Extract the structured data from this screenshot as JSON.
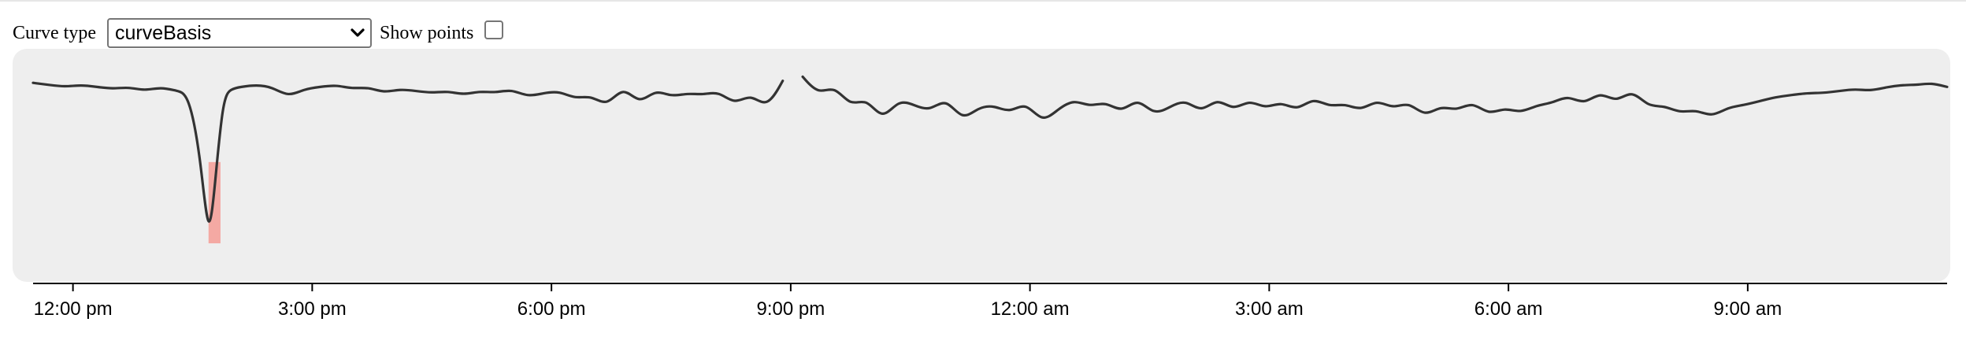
{
  "controls": {
    "curve_type_label": "Curve type",
    "curve_type_selected": "curveBasis",
    "show_points_label": "Show points",
    "show_points_checked": false
  },
  "colors": {
    "plot_background": "#eeeeee",
    "line": "#333333",
    "highlight_fill": "#f4a9a3"
  },
  "chart_data": {
    "type": "line",
    "title": "",
    "xlabel": "",
    "ylabel": "",
    "x_axis": {
      "type": "time",
      "start": "11:30 am",
      "end": "11:30 am (next day)",
      "tick_labels": [
        "12:00 pm",
        "3:00 pm",
        "6:00 pm",
        "9:00 pm",
        "12:00 am",
        "3:00 am",
        "6:00 am",
        "9:00 am"
      ],
      "tick_hours": [
        12,
        15,
        18,
        21,
        24,
        27,
        30,
        33
      ]
    },
    "y_axis": {
      "visible": false,
      "ylim": [
        0,
        100
      ]
    },
    "grid": false,
    "legend": "none",
    "gap": {
      "from_hours": 20.9,
      "to_hours": 21.15
    },
    "highlight": {
      "x_range_hours": [
        13.7,
        13.85
      ],
      "y_top": 52,
      "description_free": true
    },
    "series": [
      {
        "x_hours": [
          11.5,
          11.7,
          11.9,
          12.1,
          12.3,
          12.5,
          12.7,
          12.9,
          13.1,
          13.3,
          13.45,
          13.6,
          13.7,
          13.78,
          13.88,
          13.98,
          14.1,
          14.3,
          14.5,
          14.7,
          14.9,
          15.1,
          15.3,
          15.5,
          15.7,
          15.9,
          16.1,
          16.3,
          16.5,
          16.7,
          16.9,
          17.1,
          17.3,
          17.5,
          17.7,
          17.9,
          18.1,
          18.3,
          18.5,
          18.7,
          18.9,
          19.1,
          19.3,
          19.5,
          19.7,
          19.9,
          20.1,
          20.3,
          20.5,
          20.7,
          20.9
        ],
        "y": [
          91,
          90,
          89,
          90,
          89,
          88,
          89,
          87,
          89,
          87,
          86,
          55,
          11,
          40,
          84,
          88,
          89,
          90,
          89,
          84,
          88,
          89,
          90,
          88,
          89,
          86,
          88,
          87,
          86,
          87,
          85,
          87,
          86,
          88,
          84,
          86,
          87,
          83,
          85,
          79,
          90,
          80,
          88,
          84,
          86,
          85,
          87,
          80,
          86,
          78,
          92
        ],
        "segment": 1
      },
      {
        "x_hours": [
          21.15,
          21.35,
          21.55,
          21.75,
          21.95,
          22.15,
          22.35,
          22.55,
          22.75,
          22.95,
          23.15,
          23.35,
          23.55,
          23.75,
          23.95,
          24.15,
          24.35,
          24.55,
          24.75,
          24.95,
          25.15,
          25.35,
          25.55,
          25.75,
          25.95,
          26.15,
          26.35,
          26.55,
          26.75,
          26.95,
          27.15,
          27.35,
          27.55,
          27.75,
          27.95,
          28.15,
          28.35,
          28.55,
          28.75,
          28.95,
          29.15,
          29.35,
          29.55,
          29.75,
          29.95,
          30.15,
          30.35,
          30.55,
          30.75,
          30.95,
          31.15,
          31.35,
          31.55,
          31.75,
          31.95,
          32.15,
          32.35,
          32.55,
          32.75,
          32.95,
          33.15,
          33.35,
          33.55,
          33.75,
          33.95,
          34.15,
          34.35,
          34.55,
          34.75,
          34.95,
          35.15,
          35.3,
          35.5
        ],
        "y": [
          94,
          85,
          90,
          79,
          84,
          72,
          83,
          80,
          77,
          84,
          72,
          79,
          80,
          76,
          82,
          71,
          78,
          83,
          79,
          82,
          76,
          84,
          75,
          79,
          83,
          76,
          84,
          77,
          83,
          78,
          82,
          77,
          84,
          79,
          81,
          77,
          83,
          78,
          82,
          74,
          80,
          77,
          82,
          75,
          79,
          76,
          80,
          81,
          85,
          80,
          87,
          81,
          88,
          79,
          80,
          76,
          78,
          74,
          79,
          80,
          82,
          84,
          85,
          86,
          86,
          87,
          88,
          87,
          89,
          90,
          90,
          91,
          89
        ],
        "segment": 2
      }
    ]
  }
}
